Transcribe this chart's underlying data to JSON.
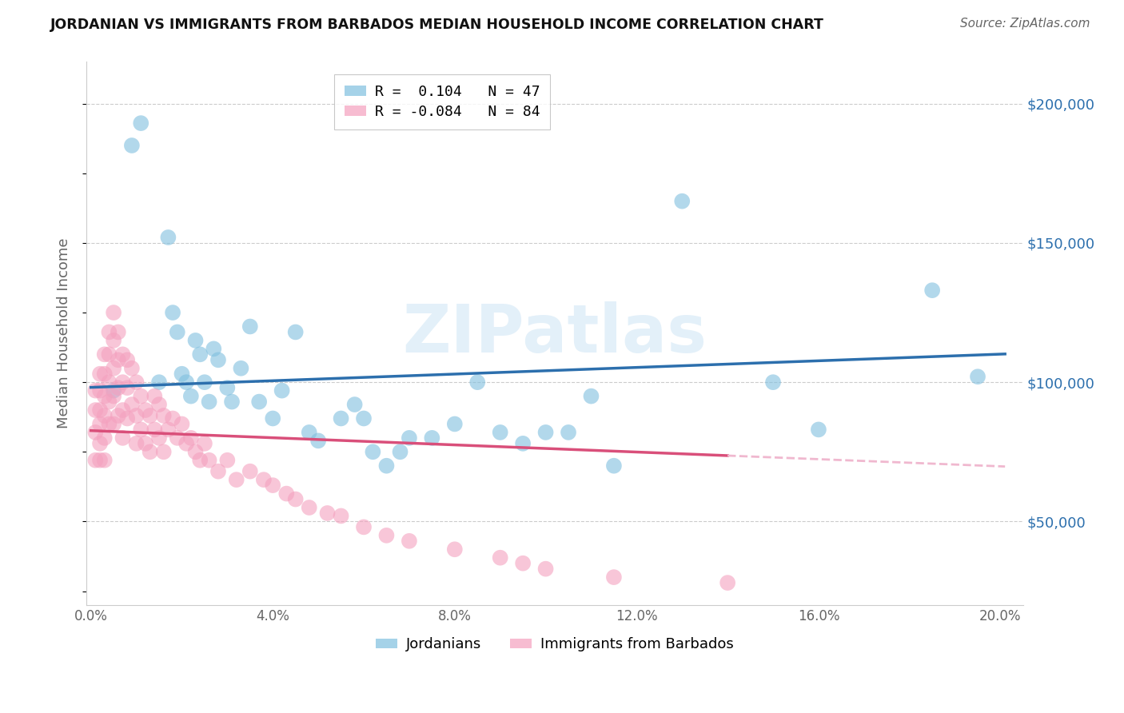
{
  "title": "JORDANIAN VS IMMIGRANTS FROM BARBADOS MEDIAN HOUSEHOLD INCOME CORRELATION CHART",
  "source": "Source: ZipAtlas.com",
  "ylabel": "Median Household Income",
  "yticks": [
    50000,
    100000,
    150000,
    200000
  ],
  "ytick_labels": [
    "$50,000",
    "$100,000",
    "$150,000",
    "$200,000"
  ],
  "ylim": [
    20000,
    215000
  ],
  "xlim": [
    -0.001,
    0.205
  ],
  "blue_color": "#7fbfdf",
  "blue_line_color": "#2c6fad",
  "pink_color": "#f4a0be",
  "pink_line_color": "#d94f7a",
  "pink_dash_color": "#f0b8cf",
  "legend_R1": "R =  0.104",
  "legend_N1": "N = 47",
  "legend_R2": "R = -0.084",
  "legend_N2": "N = 84",
  "watermark": "ZIPatlas",
  "blue_R": 0.104,
  "pink_R": -0.084,
  "blue_scatter_x": [
    0.005,
    0.009,
    0.011,
    0.015,
    0.017,
    0.018,
    0.019,
    0.02,
    0.021,
    0.022,
    0.023,
    0.024,
    0.025,
    0.026,
    0.027,
    0.028,
    0.03,
    0.031,
    0.033,
    0.035,
    0.037,
    0.04,
    0.042,
    0.045,
    0.048,
    0.05,
    0.055,
    0.058,
    0.06,
    0.062,
    0.065,
    0.068,
    0.07,
    0.075,
    0.08,
    0.085,
    0.09,
    0.095,
    0.1,
    0.105,
    0.11,
    0.115,
    0.13,
    0.15,
    0.16,
    0.185,
    0.195
  ],
  "blue_scatter_y": [
    97000,
    185000,
    193000,
    100000,
    152000,
    125000,
    118000,
    103000,
    100000,
    95000,
    115000,
    110000,
    100000,
    93000,
    112000,
    108000,
    98000,
    93000,
    105000,
    120000,
    93000,
    87000,
    97000,
    118000,
    82000,
    79000,
    87000,
    92000,
    87000,
    75000,
    70000,
    75000,
    80000,
    80000,
    85000,
    100000,
    82000,
    78000,
    82000,
    82000,
    95000,
    70000,
    165000,
    100000,
    83000,
    133000,
    102000
  ],
  "pink_scatter_x": [
    0.001,
    0.001,
    0.001,
    0.001,
    0.002,
    0.002,
    0.002,
    0.002,
    0.002,
    0.002,
    0.003,
    0.003,
    0.003,
    0.003,
    0.003,
    0.003,
    0.004,
    0.004,
    0.004,
    0.004,
    0.004,
    0.005,
    0.005,
    0.005,
    0.005,
    0.005,
    0.006,
    0.006,
    0.006,
    0.006,
    0.007,
    0.007,
    0.007,
    0.007,
    0.008,
    0.008,
    0.008,
    0.009,
    0.009,
    0.01,
    0.01,
    0.01,
    0.011,
    0.011,
    0.012,
    0.012,
    0.013,
    0.013,
    0.014,
    0.014,
    0.015,
    0.015,
    0.016,
    0.016,
    0.017,
    0.018,
    0.019,
    0.02,
    0.021,
    0.022,
    0.023,
    0.024,
    0.025,
    0.026,
    0.028,
    0.03,
    0.032,
    0.035,
    0.038,
    0.04,
    0.043,
    0.045,
    0.048,
    0.052,
    0.055,
    0.06,
    0.065,
    0.07,
    0.08,
    0.09,
    0.095,
    0.1,
    0.115,
    0.14
  ],
  "pink_scatter_y": [
    97000,
    90000,
    82000,
    72000,
    103000,
    97000,
    90000,
    85000,
    78000,
    72000,
    110000,
    103000,
    95000,
    88000,
    80000,
    72000,
    118000,
    110000,
    100000,
    93000,
    85000,
    125000,
    115000,
    105000,
    95000,
    85000,
    118000,
    108000,
    98000,
    88000,
    110000,
    100000,
    90000,
    80000,
    108000,
    98000,
    87000,
    105000,
    92000,
    100000,
    88000,
    78000,
    95000,
    83000,
    90000,
    78000,
    88000,
    75000,
    95000,
    83000,
    92000,
    80000,
    88000,
    75000,
    83000,
    87000,
    80000,
    85000,
    78000,
    80000,
    75000,
    72000,
    78000,
    72000,
    68000,
    72000,
    65000,
    68000,
    65000,
    63000,
    60000,
    58000,
    55000,
    53000,
    52000,
    48000,
    45000,
    43000,
    40000,
    37000,
    35000,
    33000,
    30000,
    28000
  ]
}
